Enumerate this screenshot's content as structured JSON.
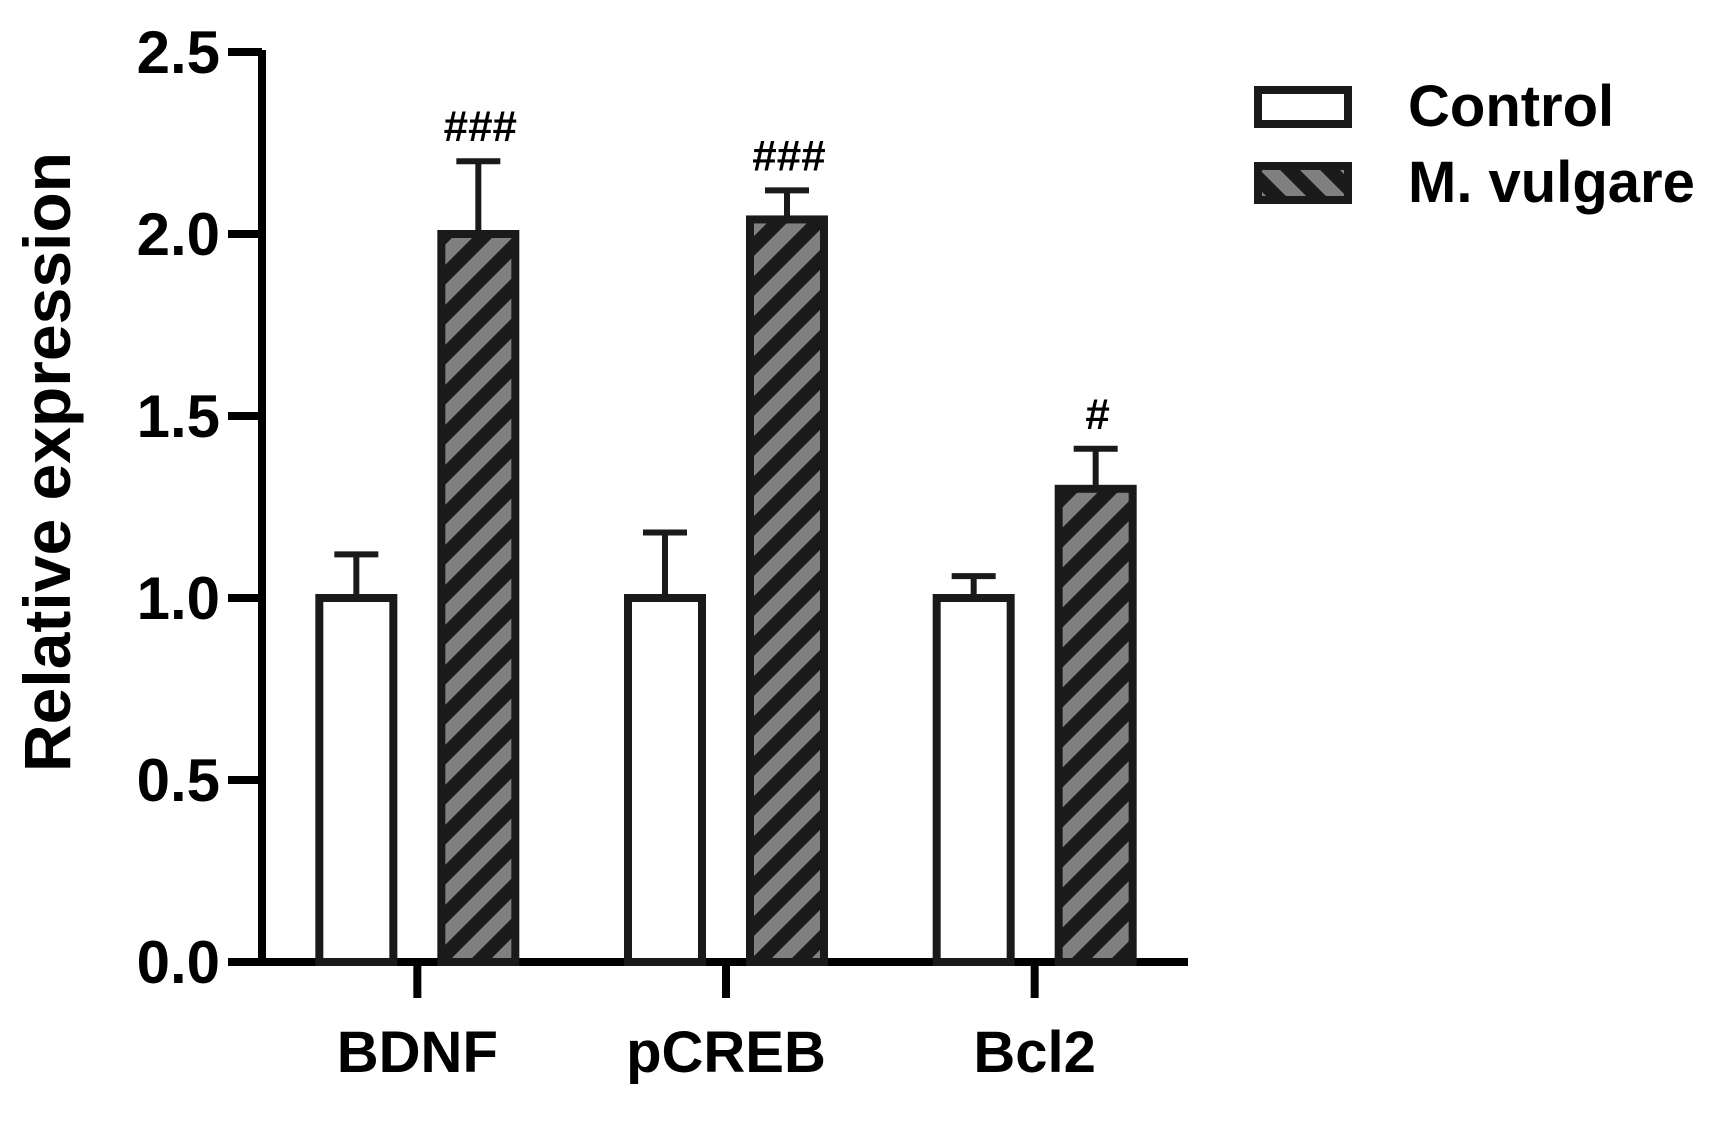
{
  "chart_data": {
    "type": "bar",
    "title": "",
    "xlabel": "",
    "ylabel": "Relative expression",
    "ylim": [
      0,
      2.5
    ],
    "yticks": [
      0.0,
      0.5,
      1.0,
      1.5,
      2.0,
      2.5
    ],
    "ytick_labels": [
      "0.0",
      "0.5",
      "1.0",
      "1.5",
      "2.0",
      "2.5"
    ],
    "categories": [
      "BDNF",
      "pCREB",
      "Bcl2"
    ],
    "series": [
      {
        "name": "Control",
        "values": [
          1.0,
          1.0,
          1.0
        ],
        "error": [
          0.12,
          0.18,
          0.06
        ],
        "annotations": [
          "",
          "",
          ""
        ],
        "fill": "#ffffff",
        "pattern": "none"
      },
      {
        "name": "M. vulgare",
        "values": [
          2.0,
          2.04,
          1.3
        ],
        "error": [
          0.2,
          0.08,
          0.11
        ],
        "annotations": [
          "###",
          "###",
          "#"
        ],
        "fill": "#808080",
        "pattern": "diagonal-stripes",
        "stripe_color": "#1a1a1a"
      }
    ],
    "grid": false,
    "legend_position": "top-right",
    "colors": {
      "axis": "#000000",
      "bar_edge": "#1a1a1a"
    }
  }
}
